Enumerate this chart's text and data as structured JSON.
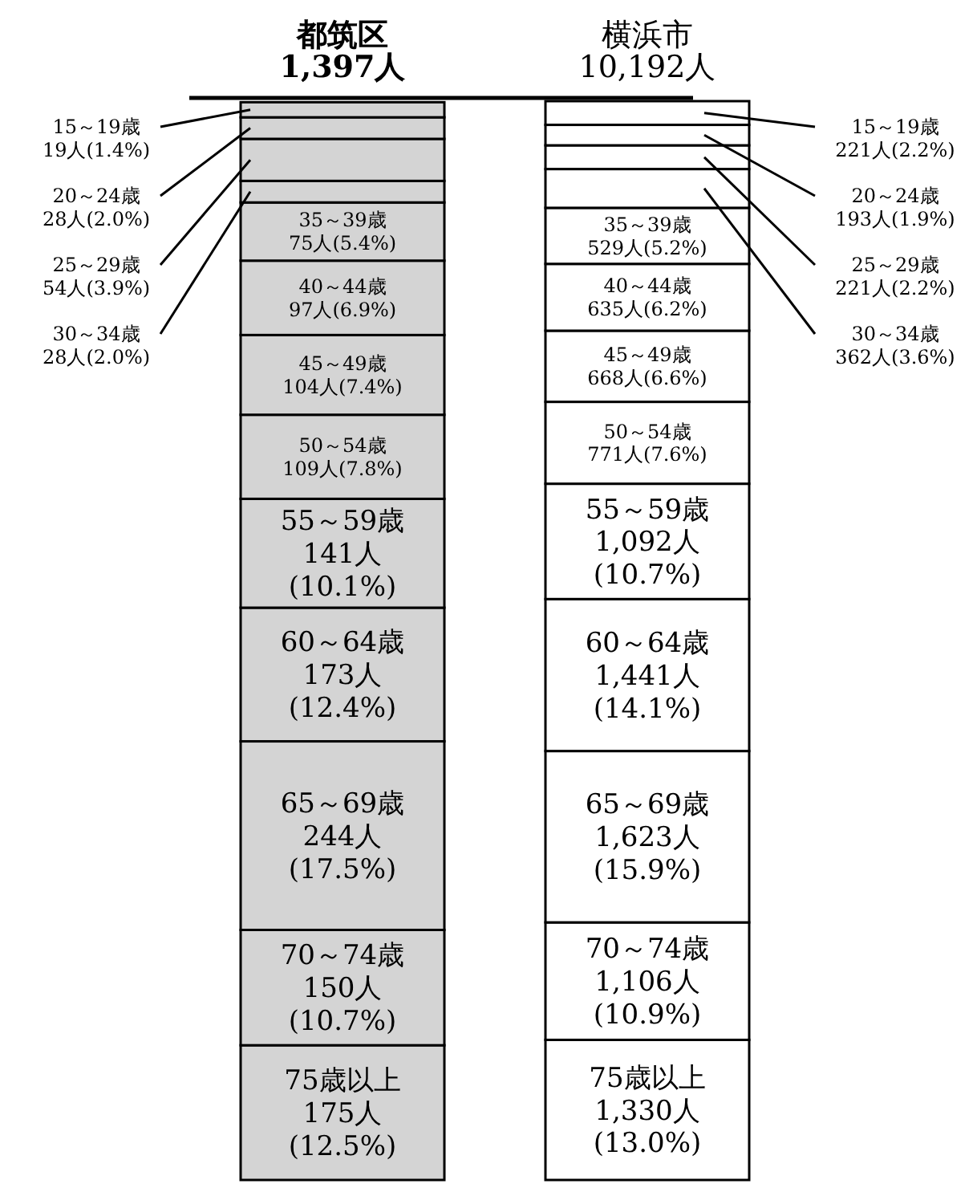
{
  "chart_data": {
    "type": "bar",
    "stacked": true,
    "categories": [
      "都筑区\n1,397人",
      "横浜市\n10,192人"
    ],
    "series": [
      {
        "colors": [
          "#d4d4d4",
          "#ffffff"
        ],
        "values": [
          0.125,
          0.13
        ],
        "value_labels": [
          "75歳以上\n175人\n(12.5%)",
          "75歳以上\n1,330人\n(13.0%)"
        ]
      },
      {
        "colors": [
          "#d4d4d4",
          "#ffffff"
        ],
        "values": [
          0.107,
          0.109
        ],
        "value_labels": [
          "70～74歳\n150人\n(10.7%)",
          "70～74歳\n1,106人\n(10.9%)"
        ]
      },
      {
        "colors": [
          "#d4d4d4",
          "#ffffff"
        ],
        "values": [
          0.175,
          0.159
        ],
        "value_labels": [
          "65～69歳\n244人\n(17.5%)",
          "65～69歳\n1,623人\n(15.9%)"
        ]
      },
      {
        "colors": [
          "#d4d4d4",
          "#ffffff"
        ],
        "values": [
          0.124,
          0.141
        ],
        "value_labels": [
          "60～64歳\n173人\n(12.4%)",
          "60～64歳\n1,441人\n(14.1%)"
        ]
      },
      {
        "colors": [
          "#d4d4d4",
          "#ffffff"
        ],
        "values": [
          0.101,
          0.107
        ],
        "value_labels": [
          "55～59歳\n141人\n(10.1%)",
          "55～59歳\n1,092人\n(10.7%)"
        ]
      },
      {
        "colors": [
          "#d4d4d4",
          "#ffffff"
        ],
        "values": [
          0.078,
          0.076
        ],
        "value_labels": [
          "50～54歳\n109人(7.8%)",
          "50～54歳\n771人(7.6%)"
        ]
      },
      {
        "colors": [
          "#d4d4d4",
          "#ffffff"
        ],
        "values": [
          0.074,
          0.066
        ],
        "value_labels": [
          "45～49歳\n104人(7.4%)",
          "45～49歳\n668人(6.6%)"
        ]
      },
      {
        "colors": [
          "#d4d4d4",
          "#ffffff"
        ],
        "values": [
          0.069,
          0.062
        ],
        "value_labels": [
          "40～44歳\n97人(6.9%)",
          "40～44歳\n635人(6.2%)"
        ]
      },
      {
        "colors": [
          "#d4d4d4",
          "#ffffff"
        ],
        "values": [
          0.054,
          0.052
        ],
        "value_labels": [
          "35～39歳\n75人(5.4%)",
          "35～39歳\n529人(5.2%)"
        ]
      },
      {
        "colors": [
          "#d4d4d4",
          "#ffffff"
        ],
        "values": [
          0.02,
          0.036
        ],
        "value_labels": [
          "30～34歳\n28人(2.0%)",
          "30～34歳\n362人(3.6%)"
        ]
      },
      {
        "colors": [
          "#d4d4d4",
          "#ffffff"
        ],
        "values": [
          0.039,
          0.022
        ],
        "value_labels": [
          "25～29歳\n54人(3.9%)",
          "25～29歳\n221人(2.2%)"
        ]
      },
      {
        "colors": [
          "#d4d4d4",
          "#ffffff"
        ],
        "values": [
          0.02,
          0.019
        ],
        "value_labels": [
          "20～24歳\n28人(2.0%)",
          "20～24歳\n193人(1.9%)"
        ]
      },
      {
        "colors": [
          "#d4d4d4",
          "#ffffff"
        ],
        "values": [
          0.014,
          0.022
        ],
        "value_labels": [
          "15～19歳\n19人(1.4%)",
          "15～19歳\n221人(2.2%)"
        ]
      }
    ]
  }
}
